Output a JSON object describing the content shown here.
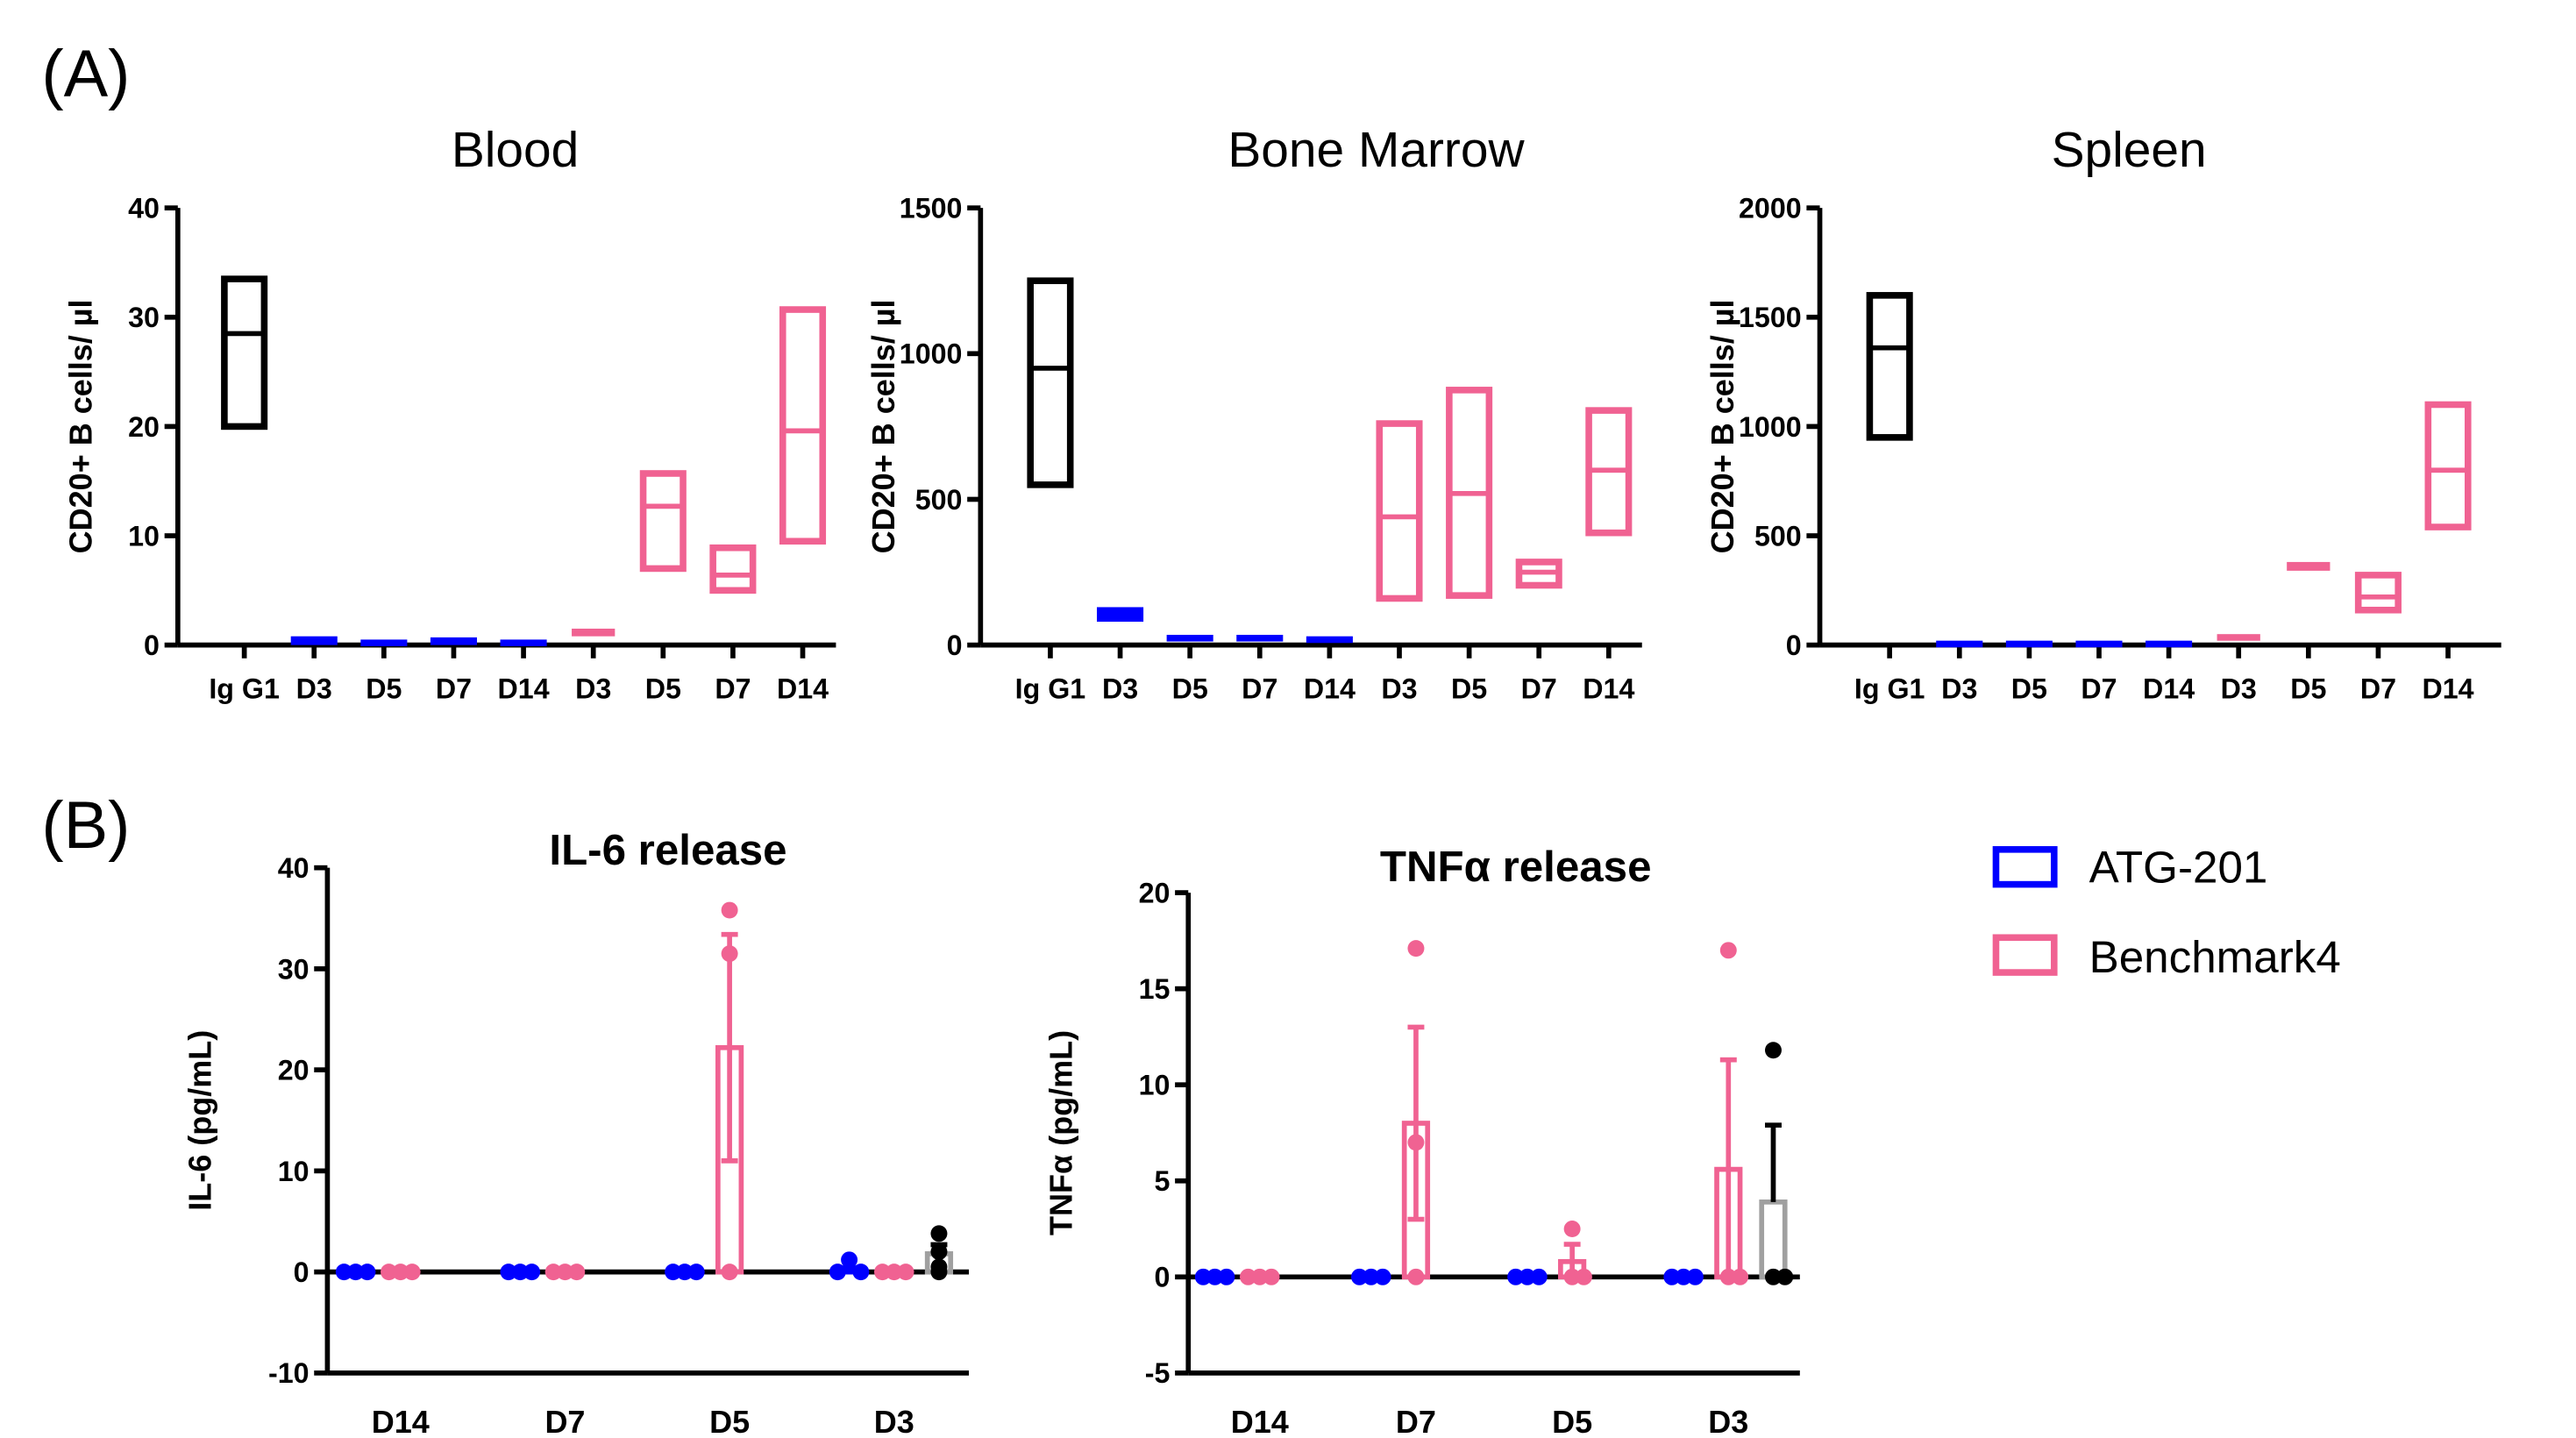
{
  "panels": {
    "a": "(A)",
    "b": "(B)"
  },
  "legend": [
    {
      "label": "ATG-201",
      "color": "#0000ff"
    },
    {
      "label": "Benchmark4",
      "color": "#f06292"
    }
  ],
  "colors": {
    "control": "#000000",
    "atg": "#0000ff",
    "bench": "#f06292",
    "control_bar": "#a0a0a0"
  },
  "chart_data": [
    {
      "type": "floating-bar",
      "title": "Blood",
      "ylabel": "CD20+ B cells/ µl",
      "ylim": [
        0,
        40
      ],
      "yticks": [
        0,
        10,
        20,
        30,
        40
      ],
      "categories": [
        "Ig G1",
        "D3",
        "D5",
        "D7",
        "D14",
        "D3",
        "D5",
        "D7",
        "D14"
      ],
      "groups": [
        "control",
        "atg",
        "atg",
        "atg",
        "atg",
        "bench",
        "bench",
        "bench",
        "bench"
      ],
      "min": [
        20,
        0,
        0,
        0,
        0,
        0.8,
        7,
        5,
        9.5
      ],
      "max": [
        33.5,
        0.8,
        0.5,
        0.7,
        0.5,
        1.5,
        15.7,
        8.9,
        30.7
      ],
      "mean": [
        28.5,
        0.4,
        0.3,
        0.4,
        0.3,
        1.1,
        12.7,
        6.4,
        19.6
      ]
    },
    {
      "type": "floating-bar",
      "title": "Bone Marrow",
      "ylabel": "CD20+ B cells/ µl",
      "ylim": [
        0,
        1500
      ],
      "yticks": [
        0,
        500,
        1000,
        1500
      ],
      "categories": [
        "Ig G1",
        "D3",
        "D5",
        "D7",
        "D14",
        "D3",
        "D5",
        "D7",
        "D14"
      ],
      "groups": [
        "control",
        "atg",
        "atg",
        "atg",
        "atg",
        "bench",
        "bench",
        "bench",
        "bench"
      ],
      "min": [
        550,
        80,
        15,
        15,
        10,
        160,
        170,
        205,
        385
      ],
      "max": [
        1250,
        130,
        35,
        35,
        30,
        760,
        875,
        285,
        805
      ],
      "mean": [
        950,
        105,
        25,
        25,
        20,
        440,
        520,
        250,
        600
      ]
    },
    {
      "type": "floating-bar",
      "title": "Spleen",
      "ylabel": "CD20+ B cells/ µl",
      "ylim": [
        0,
        2000
      ],
      "yticks": [
        0,
        500,
        1000,
        1500,
        2000
      ],
      "categories": [
        "Ig G1",
        "D3",
        "D5",
        "D7",
        "D14",
        "D3",
        "D5",
        "D7",
        "D14"
      ],
      "groups": [
        "control",
        "atg",
        "atg",
        "atg",
        "atg",
        "bench",
        "bench",
        "bench",
        "bench"
      ],
      "min": [
        950,
        0,
        0,
        0,
        0,
        20,
        340,
        160,
        540
      ],
      "max": [
        1600,
        20,
        20,
        20,
        20,
        50,
        380,
        320,
        1100
      ],
      "mean": [
        1360,
        10,
        10,
        10,
        10,
        35,
        360,
        220,
        800
      ]
    },
    {
      "type": "bar",
      "title": "IL-6 release",
      "ylabel": "IL-6 (pg/mL)",
      "ylim": [
        -10,
        40
      ],
      "yticks": [
        -10,
        0,
        10,
        20,
        30,
        40
      ],
      "categories": [
        "D14",
        "D7",
        "D5",
        "D3"
      ],
      "series": [
        {
          "group": "atg",
          "mean": [
            0,
            0,
            0,
            0.4
          ],
          "err": [
            0,
            0,
            0,
            0
          ],
          "points": [
            [
              0,
              0,
              0
            ],
            [
              0,
              0,
              0
            ],
            [
              0,
              0,
              0
            ],
            [
              0,
              1.2,
              0
            ]
          ]
        },
        {
          "group": "bench",
          "mean": [
            0,
            0,
            22.2,
            0
          ],
          "err": [
            0,
            0,
            11.2,
            0
          ],
          "points": [
            [
              0,
              0,
              0
            ],
            [
              0,
              0,
              0
            ],
            [
              35.8,
              31.5,
              0
            ],
            [
              0,
              0,
              0
            ]
          ]
        },
        {
          "group": "control",
          "mean": [
            null,
            null,
            null,
            1.8
          ],
          "err": [
            null,
            null,
            null,
            0.9
          ],
          "points": [
            [],
            [],
            [],
            [
              3.8,
              2,
              0.5,
              0
            ]
          ]
        }
      ]
    },
    {
      "type": "bar",
      "title": "TNFα release",
      "ylabel": "TNFα (pg/mL)",
      "ylim": [
        -5,
        20
      ],
      "yticks": [
        -5,
        0,
        5,
        10,
        15,
        20
      ],
      "categories": [
        "D14",
        "D7",
        "D5",
        "D3"
      ],
      "series": [
        {
          "group": "atg",
          "mean": [
            0,
            0,
            0,
            0
          ],
          "err": [
            0,
            0,
            0,
            0
          ],
          "points": [
            [
              0,
              0,
              0
            ],
            [
              0,
              0,
              0
            ],
            [
              0,
              0,
              0
            ],
            [
              0,
              0,
              0
            ]
          ]
        },
        {
          "group": "bench",
          "mean": [
            0,
            8,
            0.8,
            5.6
          ],
          "err": [
            0,
            5,
            0.9,
            5.7
          ],
          "points": [
            [
              0,
              0,
              0
            ],
            [
              17.1,
              7,
              0
            ],
            [
              2.5,
              0,
              0
            ],
            [
              17,
              0,
              0
            ]
          ]
        },
        {
          "group": "control",
          "mean": [
            null,
            null,
            null,
            3.9
          ],
          "err": [
            null,
            null,
            null,
            4
          ],
          "points": [
            [],
            [],
            [],
            [
              11.8,
              0,
              0
            ]
          ]
        }
      ]
    }
  ]
}
